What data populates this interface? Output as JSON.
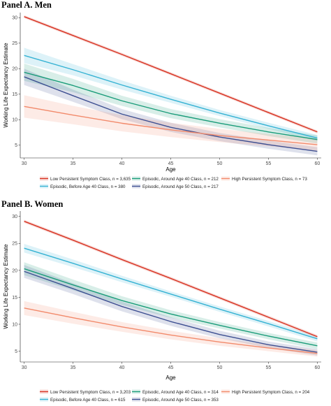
{
  "panels": [
    {
      "title": "Panel A. Men"
    },
    {
      "title": "Panel B. Women"
    }
  ],
  "chart_data": [
    {
      "type": "line",
      "title": "Panel A. Men",
      "xlabel": "Age",
      "ylabel": "Working Life Expectancy Estimate",
      "xlim": [
        29.6,
        60.4
      ],
      "ylim": [
        2.5,
        31.0
      ],
      "xticks": [
        30,
        35,
        40,
        45,
        50,
        55,
        60
      ],
      "yticks": [
        5,
        10,
        15,
        20,
        25,
        30
      ],
      "grid": false,
      "legend_position": "bottom",
      "series": [
        {
          "name": "Low Persistent Symptom Class, n = 3,635",
          "color": "#d7301f",
          "x": [
            30,
            35,
            40,
            45,
            50,
            55,
            60
          ],
          "y": [
            30.2,
            26.5,
            22.8,
            19.0,
            15.2,
            11.4,
            7.6
          ],
          "band": [
            0.3,
            0.3,
            0.3,
            0.3,
            0.3,
            0.3,
            0.3
          ]
        },
        {
          "name": "Episodic, Before Age 40 Class, n = 380",
          "color": "#35b2d3",
          "x": [
            30,
            35,
            40,
            45,
            50,
            55,
            60
          ],
          "y": [
            22.6,
            19.8,
            16.8,
            14.0,
            11.3,
            8.8,
            6.4
          ],
          "band": [
            1.5,
            1.1,
            0.9,
            0.7,
            0.6,
            0.6,
            0.6
          ]
        },
        {
          "name": "Episodic, Around Age 40 Class, n = 212",
          "color": "#1a9c79",
          "x": [
            30,
            35,
            40,
            45,
            50,
            55,
            60
          ],
          "y": [
            19.3,
            16.7,
            13.7,
            11.2,
            9.3,
            7.6,
            6.1
          ],
          "band": [
            1.7,
            1.3,
            1.0,
            0.9,
            0.8,
            0.8,
            0.8
          ]
        },
        {
          "name": "Episodic, Around Age 50 Class, n = 217",
          "color": "#3d4f91",
          "x": [
            30,
            35,
            40,
            45,
            50,
            55,
            60
          ],
          "y": [
            18.4,
            14.7,
            11.1,
            8.5,
            6.6,
            5.1,
            3.8
          ],
          "band": [
            1.6,
            1.2,
            1.0,
            0.9,
            0.8,
            0.8,
            0.8
          ]
        },
        {
          "name": "High Persistent Symptom Class, n = 73",
          "color": "#f28a6b",
          "x": [
            30,
            35,
            40,
            45,
            50,
            55,
            60
          ],
          "y": [
            12.6,
            10.9,
            9.3,
            8.0,
            6.9,
            6.0,
            5.1
          ],
          "band": [
            2.2,
            1.8,
            1.6,
            1.4,
            1.3,
            1.2,
            1.2
          ]
        }
      ]
    },
    {
      "type": "line",
      "title": "Panel B. Women",
      "xlabel": "Age",
      "ylabel": "Working Life Expectancy Estimate",
      "xlim": [
        29.6,
        60.4
      ],
      "ylim": [
        3.0,
        31.0
      ],
      "xticks": [
        30,
        35,
        40,
        45,
        50,
        55,
        60
      ],
      "yticks": [
        5,
        10,
        15,
        20,
        25,
        30
      ],
      "grid": false,
      "legend_position": "bottom",
      "series": [
        {
          "name": "Low Persistent Symptom Class, n = 3,203",
          "color": "#d7301f",
          "x": [
            30,
            35,
            40,
            45,
            50,
            55,
            60
          ],
          "y": [
            29.1,
            25.6,
            22.0,
            18.5,
            14.9,
            11.3,
            7.7
          ],
          "band": [
            0.3,
            0.3,
            0.3,
            0.3,
            0.3,
            0.3,
            0.3
          ]
        },
        {
          "name": "Episodic, Before Age 40 Class, n = 615",
          "color": "#35b2d3",
          "x": [
            30,
            35,
            40,
            45,
            50,
            55,
            60
          ],
          "y": [
            24.1,
            21.3,
            18.4,
            15.6,
            12.8,
            10.1,
            7.3
          ],
          "band": [
            0.8,
            0.7,
            0.6,
            0.5,
            0.5,
            0.5,
            0.5
          ]
        },
        {
          "name": "Episodic, Around Age 40 Class, n = 314",
          "color": "#1a9c79",
          "x": [
            30,
            35,
            40,
            45,
            50,
            55,
            60
          ],
          "y": [
            20.3,
            17.3,
            14.4,
            11.9,
            9.8,
            7.8,
            6.0
          ],
          "band": [
            1.2,
            1.0,
            0.8,
            0.7,
            0.6,
            0.6,
            0.6
          ]
        },
        {
          "name": "Episodic, Around Age 50 Class, n = 353",
          "color": "#3d4f91",
          "x": [
            30,
            35,
            40,
            45,
            50,
            55,
            60
          ],
          "y": [
            19.8,
            16.6,
            13.3,
            10.5,
            8.1,
            6.2,
            4.8
          ],
          "band": [
            1.2,
            1.0,
            0.9,
            0.8,
            0.7,
            0.6,
            0.6
          ]
        },
        {
          "name": "High Persistent Symptom Class, n = 204",
          "color": "#f28a6b",
          "x": [
            30,
            35,
            40,
            45,
            50,
            55,
            60
          ],
          "y": [
            13.0,
            11.2,
            9.5,
            8.0,
            6.7,
            5.6,
            4.6
          ],
          "band": [
            1.3,
            1.1,
            0.9,
            0.8,
            0.7,
            0.6,
            0.6
          ]
        }
      ]
    }
  ]
}
